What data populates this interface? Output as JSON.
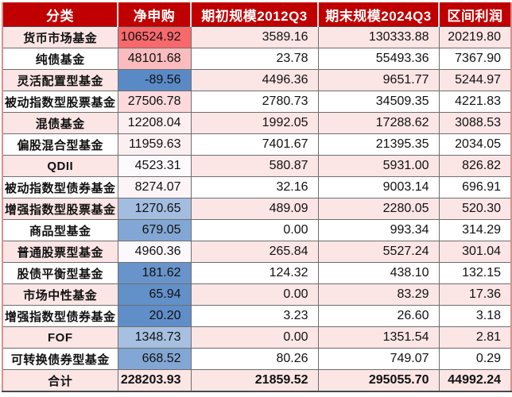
{
  "table": {
    "columns": [
      {
        "label": "分类"
      },
      {
        "label": "净申购"
      },
      {
        "label": "期初规模2012Q3"
      },
      {
        "label": "期末规模2024Q3"
      },
      {
        "label": "区间利润"
      }
    ],
    "rows": [
      {
        "category": "货币市场基金",
        "net": "106524.92",
        "begin": "3589.16",
        "end": "130333.88",
        "profit": "20219.80",
        "net_bg": "#F8696B",
        "is_total": false
      },
      {
        "category": "纯债基金",
        "net": "48101.68",
        "begin": "23.78",
        "end": "55493.36",
        "profit": "7367.90",
        "net_bg": "#FABCBE",
        "is_total": false
      },
      {
        "category": "灵活配置型基金",
        "net": "-89.56",
        "begin": "4496.36",
        "end": "9651.77",
        "profit": "5244.97",
        "net_bg": "#5A8AC6",
        "is_total": false
      },
      {
        "category": "被动指数型股票基金",
        "net": "27506.78",
        "begin": "2780.73",
        "end": "34509.35",
        "profit": "4221.83",
        "net_bg": "#FBD9DC",
        "is_total": false
      },
      {
        "category": "混债基金",
        "net": "12208.04",
        "begin": "1992.05",
        "end": "17288.62",
        "profit": "3088.53",
        "net_bg": "#FCEFF2",
        "is_total": false
      },
      {
        "category": "偏股混合型基金",
        "net": "11959.63",
        "begin": "7401.67",
        "end": "21395.35",
        "profit": "2034.05",
        "net_bg": "#FCEFF2",
        "is_total": false
      },
      {
        "category": "QDII",
        "net": "4523.31",
        "begin": "580.87",
        "end": "5931.00",
        "profit": "826.82",
        "net_bg": "#FCFAFD",
        "is_total": false
      },
      {
        "category": "被动指数型债券基金",
        "net": "8274.07",
        "begin": "32.16",
        "end": "9003.14",
        "profit": "696.91",
        "net_bg": "#FCF4F7",
        "is_total": false
      },
      {
        "category": "增强指数型股票基金",
        "net": "1270.65",
        "begin": "489.09",
        "end": "2280.05",
        "profit": "520.30",
        "net_bg": "#A3BDE0",
        "is_total": false
      },
      {
        "category": "商品型基金",
        "net": "679.05",
        "begin": "0.00",
        "end": "993.34",
        "profit": "314.29",
        "net_bg": "#83A7D4",
        "is_total": false
      },
      {
        "category": "普通股票型基金",
        "net": "4960.36",
        "begin": "265.84",
        "end": "5527.24",
        "profit": "301.04",
        "net_bg": "#FCF9FC",
        "is_total": false
      },
      {
        "category": "股债平衡型基金",
        "net": "181.62",
        "begin": "124.32",
        "end": "438.10",
        "profit": "132.15",
        "net_bg": "#6894CB",
        "is_total": false
      },
      {
        "category": "市场中性基金",
        "net": "65.94",
        "begin": "0.00",
        "end": "83.29",
        "profit": "17.36",
        "net_bg": "#6290C9",
        "is_total": false
      },
      {
        "category": "增强指数型债券基金",
        "net": "20.20",
        "begin": "3.23",
        "end": "26.60",
        "profit": "3.18",
        "net_bg": "#608EC8",
        "is_total": false
      },
      {
        "category": "FOF",
        "net": "1348.73",
        "begin": "0.00",
        "end": "1351.54",
        "profit": "2.81",
        "net_bg": "#A7C0E1",
        "is_total": false
      },
      {
        "category": "可转换债券型基金",
        "net": "668.52",
        "begin": "80.26",
        "end": "749.07",
        "profit": "0.29",
        "net_bg": "#83A7D4",
        "is_total": false
      },
      {
        "category": "合计",
        "net": "228203.93",
        "begin": "21859.52",
        "end": "295055.70",
        "profit": "44992.24",
        "net_bg": "",
        "is_total": true
      }
    ],
    "colors": {
      "header_bg": "#C00000",
      "header_text": "#FFFFFF",
      "row_pink": "#FCE5E5",
      "row_white": "#FFFFFF",
      "grid_border": "#6E6E6E",
      "outer_border": "#DB9090",
      "scale_max_red": "#F8696B",
      "scale_mid_white": "#FCFCFF",
      "scale_min_blue": "#5A8AC6",
      "body_text": "#111111"
    }
  },
  "chart_data": {
    "type": "table",
    "title": "",
    "columns": [
      "分类",
      "净申购",
      "期初规模2012Q3",
      "期末规模2024Q3",
      "区间利润"
    ],
    "rows": [
      [
        "货币市场基金",
        106524.92,
        3589.16,
        130333.88,
        20219.8
      ],
      [
        "纯债基金",
        48101.68,
        23.78,
        55493.36,
        7367.9
      ],
      [
        "灵活配置型基金",
        -89.56,
        4496.36,
        9651.77,
        5244.97
      ],
      [
        "被动指数型股票基金",
        27506.78,
        2780.73,
        34509.35,
        4221.83
      ],
      [
        "混债基金",
        12208.04,
        1992.05,
        17288.62,
        3088.53
      ],
      [
        "偏股混合型基金",
        11959.63,
        7401.67,
        21395.35,
        2034.05
      ],
      [
        "QDII",
        4523.31,
        580.87,
        5931.0,
        826.82
      ],
      [
        "被动指数型债券基金",
        8274.07,
        32.16,
        9003.14,
        696.91
      ],
      [
        "增强指数型股票基金",
        1270.65,
        489.09,
        2280.05,
        520.3
      ],
      [
        "商品型基金",
        679.05,
        0.0,
        993.34,
        314.29
      ],
      [
        "普通股票型基金",
        4960.36,
        265.84,
        5527.24,
        301.04
      ],
      [
        "股债平衡型基金",
        181.62,
        124.32,
        438.1,
        132.15
      ],
      [
        "市场中性基金",
        65.94,
        0.0,
        83.29,
        17.36
      ],
      [
        "增强指数型债券基金",
        20.2,
        3.23,
        26.6,
        3.18
      ],
      [
        "FOF",
        1348.73,
        0.0,
        1351.54,
        2.81
      ],
      [
        "可转换债券型基金",
        668.52,
        80.26,
        749.07,
        0.29
      ],
      [
        "合计",
        228203.93,
        21859.52,
        295055.7,
        44992.24
      ]
    ],
    "notes": "净申购 column uses a blue-white-red conditional color scale (min=blue #5A8AC6, mid=white, max=red #F8696B); rows alternate white and light-pink #FCE5E5; header dark red #C00000 with white bold text; last row is bold totals."
  }
}
